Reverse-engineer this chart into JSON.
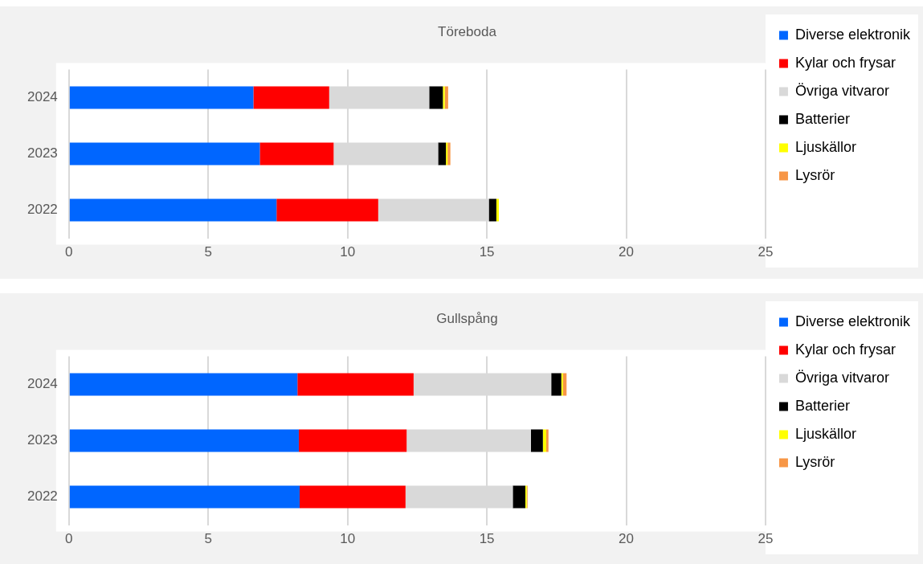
{
  "chart_data": [
    {
      "type": "bar",
      "title": "Töreboda",
      "orientation": "horizontal",
      "stacked": true,
      "categories": [
        "2024",
        "2023",
        "2022"
      ],
      "xlim": [
        0,
        25
      ],
      "xticks": [
        0,
        5,
        10,
        15,
        20,
        25
      ],
      "grid": "x",
      "legend": "right",
      "series": [
        {
          "name": "Diverse elektronik",
          "color": "#0066ff",
          "values": [
            6.62,
            6.85,
            7.45
          ]
        },
        {
          "name": "Kylar och frysar",
          "color": "#ff0000",
          "values": [
            2.72,
            2.65,
            3.65
          ]
        },
        {
          "name": "Övriga vitvaror",
          "color": "#d9d9d9",
          "values": [
            3.59,
            3.75,
            3.97
          ]
        },
        {
          "name": "Batterier",
          "color": "#000000",
          "values": [
            0.49,
            0.28,
            0.27
          ]
        },
        {
          "name": "Ljuskällor",
          "color": "#ffff00",
          "values": [
            0.07,
            0.06,
            0.09
          ]
        },
        {
          "name": "Lysrör",
          "color": "#f79646",
          "values": [
            0.12,
            0.1,
            0
          ]
        }
      ]
    },
    {
      "type": "bar",
      "title": "Gullspång",
      "orientation": "horizontal",
      "stacked": true,
      "categories": [
        "2024",
        "2023",
        "2022"
      ],
      "xlim": [
        0,
        25
      ],
      "xticks": [
        0,
        5,
        10,
        15,
        20,
        25
      ],
      "grid": "x",
      "legend": "right",
      "series": [
        {
          "name": "Diverse elektronik",
          "color": "#0066ff",
          "values": [
            8.2,
            8.25,
            8.28
          ]
        },
        {
          "name": "Kylar och frysar",
          "color": "#ff0000",
          "values": [
            4.17,
            3.87,
            3.8
          ]
        },
        {
          "name": "Övriga vitvaror",
          "color": "#d9d9d9",
          "values": [
            4.94,
            4.46,
            3.85
          ]
        },
        {
          "name": "Batterier",
          "color": "#000000",
          "values": [
            0.36,
            0.43,
            0.45
          ]
        },
        {
          "name": "Ljuskällor",
          "color": "#ffff00",
          "values": [
            0.06,
            0.12,
            0.05
          ]
        },
        {
          "name": "Lysrör",
          "color": "#f79646",
          "values": [
            0.13,
            0.08,
            0.03
          ]
        }
      ]
    }
  ]
}
